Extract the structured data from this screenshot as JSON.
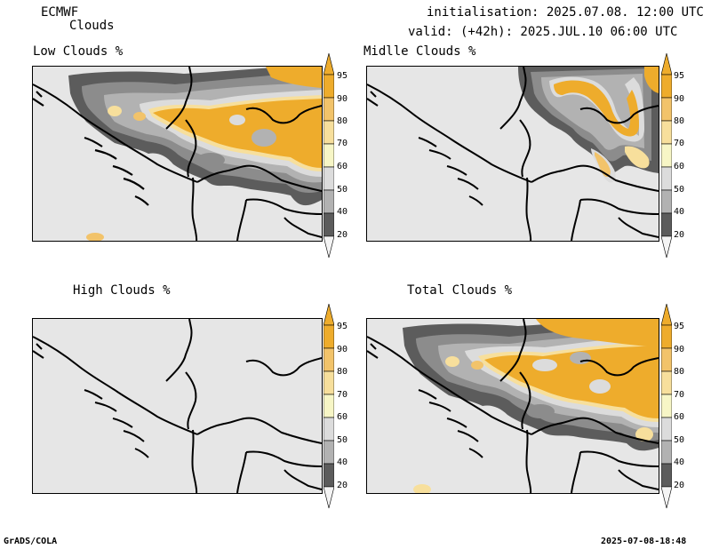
{
  "header": {
    "model": "ECMWF",
    "product": "Clouds",
    "init": "initialisation: 2025.07.08. 12:00 UTC",
    "valid": "valid: (+42h): 2025.JUL.10 06:00 UTC"
  },
  "panels": [
    {
      "title": "Low Clouds %"
    },
    {
      "title": "Midlle Clouds %"
    },
    {
      "title": "High Clouds %"
    },
    {
      "title": "Total Clouds %"
    }
  ],
  "colorbar": {
    "labels": [
      "95",
      "90",
      "80",
      "70",
      "60",
      "50",
      "40",
      "20"
    ],
    "colors": {
      "c95": "#eeac2c",
      "c90": "#f2c36a",
      "c80": "#f7df9c",
      "c70": "#f7f6c6",
      "c60": "#dcdcdc",
      "c50": "#b2b2b2",
      "c40": "#8c8c8c",
      "c20": "#5c5c5c",
      "low": "#f4f4f4"
    }
  },
  "footer": {
    "left": "GrADS/COLA",
    "right": "2025-07-08-18:48"
  }
}
